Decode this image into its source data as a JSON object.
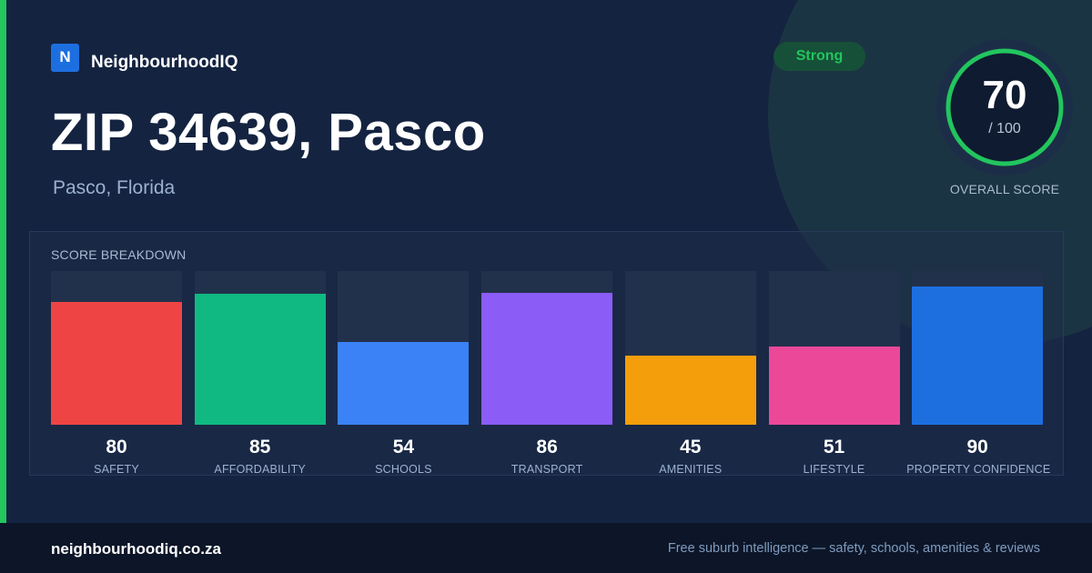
{
  "brand": {
    "logo_letter": "N",
    "name": "NeighbourhoodIQ"
  },
  "location": {
    "title": "ZIP 34639, Pasco",
    "subtitle": "Pasco, Florida"
  },
  "badge": {
    "label": "Strong",
    "color": "#22c55e"
  },
  "overall": {
    "score": "70",
    "max_label": "/ 100",
    "label": "OVERALL SCORE",
    "fraction": 0.7
  },
  "breakdown": {
    "title": "SCORE BREAKDOWN",
    "items": [
      {
        "label": "SAFETY",
        "value": "80",
        "color": "#ef4444"
      },
      {
        "label": "AFFORDABILITY",
        "value": "85",
        "color": "#10b981"
      },
      {
        "label": "SCHOOLS",
        "value": "54",
        "color": "#3b82f6"
      },
      {
        "label": "TRANSPORT",
        "value": "86",
        "color": "#8b5cf6"
      },
      {
        "label": "AMENITIES",
        "value": "45",
        "color": "#f59e0b"
      },
      {
        "label": "LIFESTYLE",
        "value": "51",
        "color": "#ec4899"
      },
      {
        "label": "PROPERTY CONFIDENCE",
        "value": "90",
        "color": "#1d6fe0"
      }
    ]
  },
  "footer": {
    "domain": "neighbourhoodiq.co.za",
    "tagline": "Free suburb intelligence — safety, schools, amenities & reviews"
  }
}
